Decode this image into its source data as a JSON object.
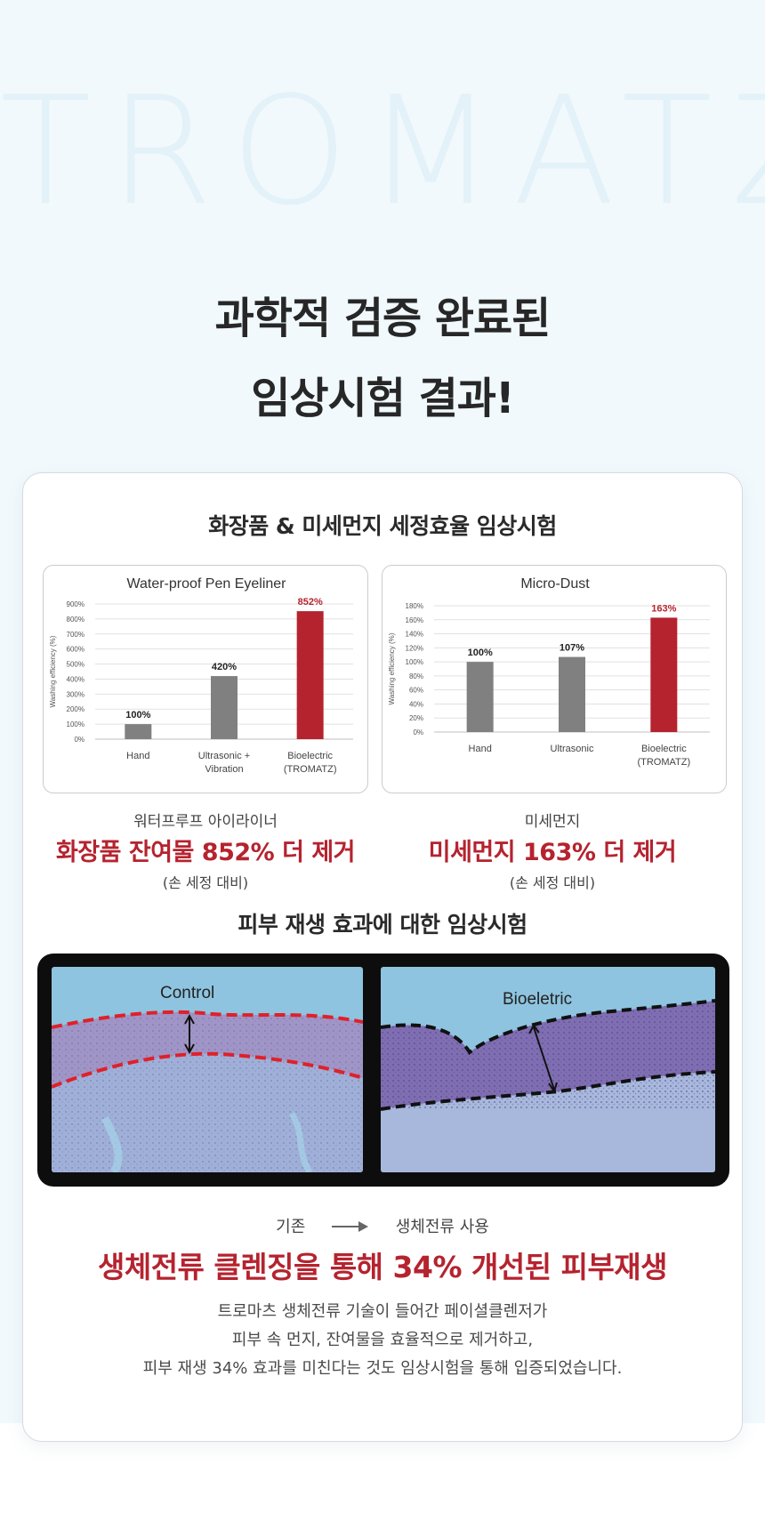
{
  "watermark": "TROMATZ",
  "headline": {
    "line1": "과학적 검증 완료된",
    "line2": "임상시험 결과!"
  },
  "section1": {
    "title": "화장품 & 미세먼지 세정효율 임상시험"
  },
  "colors": {
    "accent_red": "#b5232f",
    "bar_gray": "#808080",
    "bar_red": "#b5232f"
  },
  "chart_data": [
    {
      "type": "bar",
      "title": "Water-proof Pen Eyeliner",
      "ylabel": "Washing efficiency (%)",
      "categories": [
        [
          "Hand"
        ],
        [
          "Ultrasonic +",
          "Vibration"
        ],
        [
          "Bioelectric",
          "(TROMATZ)"
        ]
      ],
      "values": [
        100,
        420,
        852
      ],
      "data_labels": [
        "100%",
        "420%",
        "852%"
      ],
      "yticks": [
        0,
        100,
        200,
        300,
        400,
        500,
        600,
        700,
        800,
        900
      ],
      "ylim": [
        0,
        900
      ],
      "highlight_index": 2,
      "grid": true
    },
    {
      "type": "bar",
      "title": "Micro-Dust",
      "ylabel": "Washing efficiency (%)",
      "categories": [
        [
          "Hand"
        ],
        [
          "Ultrasonic"
        ],
        [
          "Bioelectric",
          "(TROMATZ)"
        ]
      ],
      "values": [
        100,
        107,
        163
      ],
      "data_labels": [
        "100%",
        "107%",
        "163%"
      ],
      "yticks": [
        0,
        20,
        40,
        60,
        80,
        100,
        120,
        140,
        160,
        180
      ],
      "ylim": [
        0,
        180
      ],
      "highlight_index": 2,
      "grid": true
    }
  ],
  "captions": [
    {
      "top": "워터프루프 아이라이너",
      "main": "화장품 잔여물 852% 더 제거",
      "sub": "(손 세정 대비)"
    },
    {
      "top": "미세먼지",
      "main": "미세먼지 163% 더 제거",
      "sub": "(손 세정 대비)"
    }
  ],
  "section2": {
    "title": "피부 재생 효과에 대한 임상시험",
    "panels": [
      {
        "label": "Control",
        "line_color": "#e0202a"
      },
      {
        "label": "Bioeletric",
        "line_color": "#111111"
      }
    ]
  },
  "compare": {
    "before": "기존",
    "after": "생체전류 사용"
  },
  "result": {
    "title": "생체전류 클렌징을 통해 34% 개선된 피부재생"
  },
  "description": [
    "트로마츠 생체전류 기술이 들어간 페이셜클렌저가",
    "피부 속 먼지, 잔여물을 효율적으로 제거하고,",
    "피부 재생 34% 효과를 미친다는 것도 임상시험을 통해 입증되었습니다."
  ]
}
